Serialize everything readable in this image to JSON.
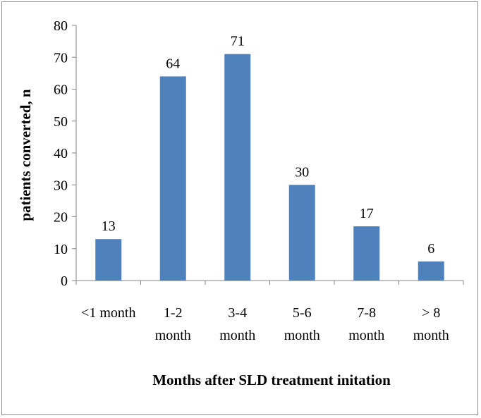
{
  "chart_data": {
    "type": "bar",
    "categories": [
      [
        "<1 month"
      ],
      [
        "1-2",
        "month"
      ],
      [
        "3-4",
        "month"
      ],
      [
        "5-6",
        "month"
      ],
      [
        "7-8",
        "month"
      ],
      [
        "> 8",
        "month"
      ]
    ],
    "values": [
      13,
      64,
      71,
      30,
      17,
      6
    ],
    "data_labels": [
      "13",
      "64",
      "71",
      "30",
      "17",
      "6"
    ],
    "yticks": [
      "0",
      "10",
      "20",
      "30",
      "40",
      "50",
      "60",
      "70",
      "80"
    ],
    "ylim": [
      0,
      80
    ],
    "xlabel": "Months after SLD treatment initation",
    "ylabel": "patients converted, n",
    "bar_color": "#4f81bd",
    "grid": false,
    "legend": "none"
  }
}
